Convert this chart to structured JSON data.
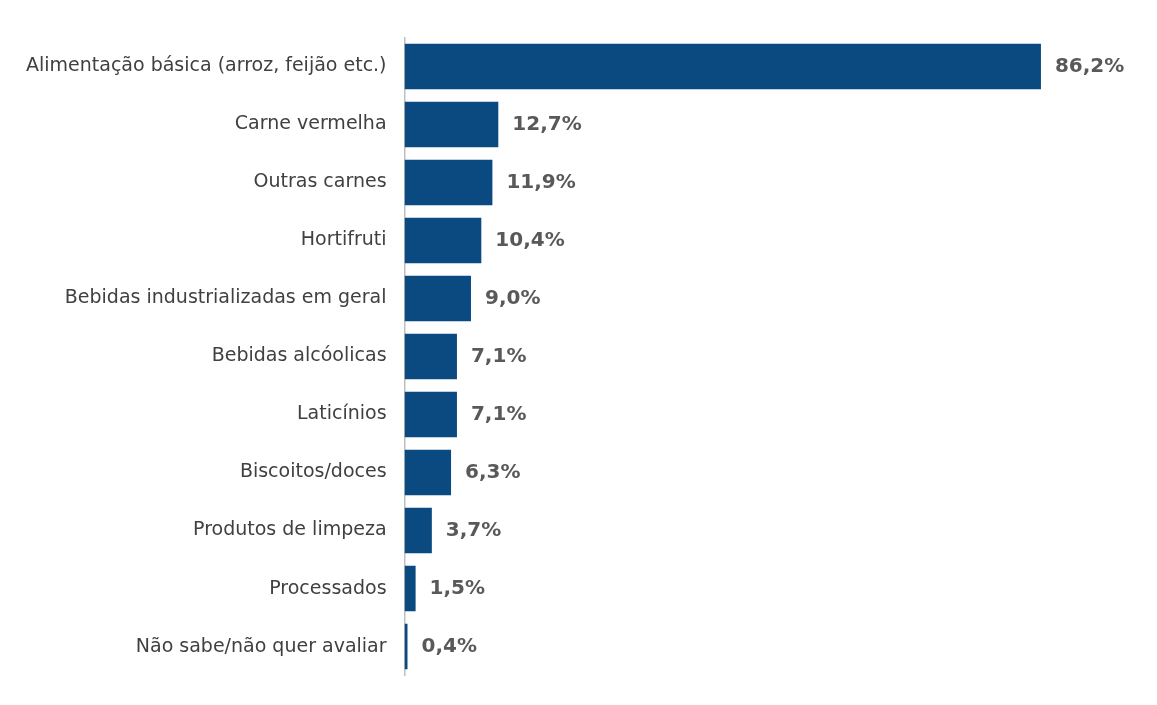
{
  "chart_data": {
    "type": "bar",
    "orientation": "horizontal",
    "categories": [
      "Alimentação básica (arroz, feijão etc.)",
      "Carne vermelha",
      "Outras carnes",
      "Hortifruti",
      "Bebidas industrializadas em geral",
      "Bebidas alcóolicas",
      "Laticínios",
      "Biscoitos/doces",
      "Produtos de limpeza",
      "Processados",
      "Não sabe/não quer avaliar"
    ],
    "values": [
      86.2,
      12.7,
      11.9,
      10.4,
      9.0,
      7.1,
      7.1,
      6.3,
      3.7,
      1.5,
      0.4
    ],
    "value_labels": [
      "86,2%",
      "12,7%",
      "11,9%",
      "10,4%",
      "9,0%",
      "7,1%",
      "7,1%",
      "6,3%",
      "3,7%",
      "1,5%",
      "0,4%"
    ],
    "color": "#0b4a80",
    "grid": false,
    "legend": false,
    "tick_labels": "y"
  }
}
